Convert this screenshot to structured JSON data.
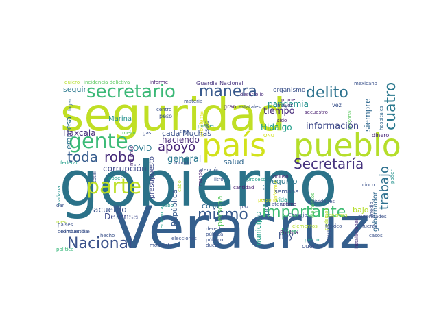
{
  "palette": {
    "navy": "#3b2a6b",
    "indigo": "#414487",
    "blue": "#2c5e8a",
    "teal": "#21918c",
    "deepteal": "#2a788e",
    "green": "#35b779",
    "lime": "#b5de2b",
    "yellowgreen": "#90d743",
    "yellow": "#e3e418",
    "purple": "#46327e"
  },
  "words": [
    "seguridad",
    "gobierno",
    "Veracruz",
    "país",
    "pueblo",
    "parte",
    "gente",
    "secretario",
    "manera",
    "delito",
    "cuatro",
    "importante",
    "mismo",
    "Nacional",
    "Secretaría",
    "toda",
    "robo",
    "apoyo",
    "trabajo",
    "tiempo",
    "general",
    "pandemia",
    "información",
    "siempre",
    "Hidalgo",
    "haciendo",
    "Defensa",
    "corrupción",
    "COVID",
    "Tlaxcala",
    "acuerdo",
    "República",
    "municipio",
    "población",
    "equipo",
    "hoy",
    "bien",
    "gobernador",
    "bajo",
    "cosa",
    "persona",
    "salud",
    "cada",
    "Muchas",
    "presupuesto",
    "seguir",
    "empresa",
    "Marina",
    "Guardia Nacional",
    "organismo",
    "desarrollo",
    "mexicano",
    "informe",
    "incidencia delictiva",
    "quiero",
    "vehículos",
    "materia",
    "lugar",
    "primer",
    "mayor",
    "vez",
    "secuestro",
    "dinero",
    "hospitales",
    "sólo",
    "gran",
    "problema",
    "estatales",
    "pueden",
    "sido",
    "millones",
    "ONU",
    "peso",
    "tipo",
    "gas",
    "mejor",
    "centro",
    "federal",
    "combustible",
    "mañana",
    "dar",
    "países",
    "delincuencia",
    "mes",
    "política",
    "hecho",
    "momento",
    "elecciones",
    "derecho",
    "pública",
    "público",
    "ducto",
    "Puebla",
    "precio",
    "cuenta",
    "México",
    "favor",
    "fuerza",
    "casos",
    "autoridades",
    "operaciones",
    "ningún",
    "instalaciones",
    "podemos",
    "cinco",
    "medio",
    "último",
    "semana",
    "vida",
    "informar",
    "cantidad",
    "proceso",
    "paz",
    "atender",
    "Consejo",
    "incluso",
    "mundo",
    "atención",
    "litro",
    "cabo",
    "total",
    "poder",
    "personal",
    "elementos",
    "actividades",
    "tendencia",
    "tenemos",
    "primero",
    "seguimiento",
    "ayer",
    "mil",
    "apoyos",
    "hecho",
    "país"
  ]
}
